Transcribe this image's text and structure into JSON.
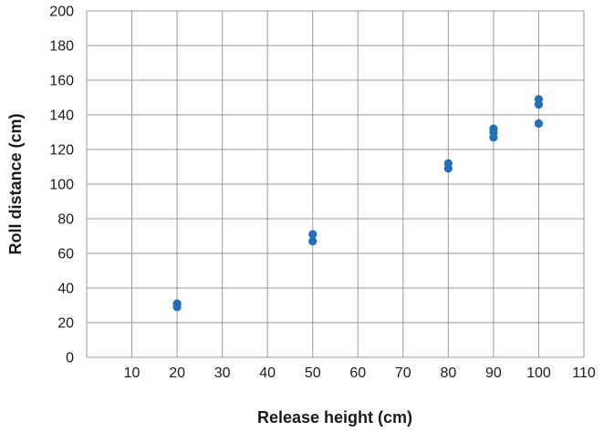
{
  "chart_data": {
    "type": "scatter",
    "xlabel": "Release height (cm)",
    "ylabel": "Roll distance (cm)",
    "xlim": [
      0,
      110
    ],
    "ylim": [
      0,
      200
    ],
    "x_ticks": [
      10,
      20,
      30,
      40,
      50,
      60,
      70,
      80,
      90,
      100,
      110
    ],
    "y_ticks": [
      0,
      20,
      40,
      60,
      80,
      100,
      120,
      140,
      160,
      180,
      200
    ],
    "grid": true,
    "legend": "none",
    "marker_color": "#1f6fbf",
    "series": [
      {
        "points": [
          {
            "x": 20,
            "y": 31
          },
          {
            "x": 20,
            "y": 29
          },
          {
            "x": 50,
            "y": 71
          },
          {
            "x": 50,
            "y": 67
          },
          {
            "x": 80,
            "y": 112
          },
          {
            "x": 80,
            "y": 109
          },
          {
            "x": 90,
            "y": 132
          },
          {
            "x": 90,
            "y": 130
          },
          {
            "x": 90,
            "y": 127
          },
          {
            "x": 100,
            "y": 149
          },
          {
            "x": 100,
            "y": 146
          },
          {
            "x": 100,
            "y": 135
          }
        ]
      }
    ]
  }
}
